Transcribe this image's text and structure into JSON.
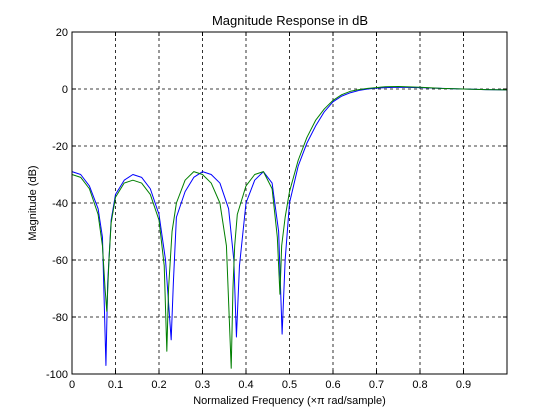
{
  "chart_data": {
    "type": "line",
    "title": "Magnitude Response in dB",
    "xlabel": "Normalized Frequency  (×π rad/sample)",
    "ylabel": "Magnitude (dB)",
    "xlim": [
      0,
      1
    ],
    "ylim": [
      -100,
      20
    ],
    "xticks": [
      0,
      0.1,
      0.2,
      0.3,
      0.4,
      0.5,
      0.6,
      0.7,
      0.8,
      0.9
    ],
    "xtick_labels": [
      "0",
      "0.1",
      "0.2",
      "0.3",
      "0.4",
      "0.5",
      "0.6",
      "0.7",
      "0.8",
      "0.9"
    ],
    "yticks": [
      20,
      0,
      -20,
      -40,
      -60,
      -80,
      -100
    ],
    "ytick_labels": [
      "20",
      "0",
      "-20",
      "-40",
      "-60",
      "-80",
      "-100"
    ],
    "grid": true,
    "grid_style": "dashed",
    "series": [
      {
        "color": "#0000ff",
        "x": [
          0,
          0.02,
          0.04,
          0.06,
          0.07,
          0.078,
          0.082,
          0.09,
          0.1,
          0.12,
          0.14,
          0.16,
          0.18,
          0.2,
          0.215,
          0.228,
          0.233,
          0.24,
          0.26,
          0.28,
          0.3,
          0.32,
          0.34,
          0.36,
          0.372,
          0.378,
          0.385,
          0.4,
          0.42,
          0.44,
          0.46,
          0.475,
          0.483,
          0.49,
          0.5,
          0.52,
          0.54,
          0.56,
          0.58,
          0.6,
          0.62,
          0.64,
          0.66,
          0.68,
          0.7,
          0.72,
          0.75,
          0.8,
          0.85,
          0.9,
          0.95,
          1.0
        ],
        "y": [
          -29,
          -30,
          -34,
          -42,
          -52,
          -97,
          -68,
          -46,
          -37,
          -32,
          -30,
          -31,
          -35,
          -44,
          -60,
          -88,
          -68,
          -45,
          -36,
          -31,
          -29,
          -30,
          -33,
          -42,
          -60,
          -87,
          -62,
          -40,
          -32,
          -29,
          -33,
          -50,
          -86,
          -60,
          -40,
          -27,
          -19,
          -13,
          -8,
          -4.5,
          -2.5,
          -1.3,
          -0.5,
          0,
          0.3,
          0.5,
          0.6,
          0.5,
          0.2,
          0,
          -0.2,
          -0.3
        ]
      },
      {
        "color": "#007f00",
        "x": [
          0,
          0.02,
          0.04,
          0.06,
          0.07,
          0.076,
          0.08,
          0.085,
          0.09,
          0.1,
          0.12,
          0.14,
          0.16,
          0.18,
          0.2,
          0.212,
          0.218,
          0.222,
          0.23,
          0.24,
          0.26,
          0.28,
          0.3,
          0.32,
          0.34,
          0.355,
          0.366,
          0.37,
          0.374,
          0.38,
          0.4,
          0.42,
          0.44,
          0.46,
          0.472,
          0.478,
          0.482,
          0.49,
          0.5,
          0.52,
          0.54,
          0.56,
          0.58,
          0.6,
          0.62,
          0.64,
          0.66,
          0.68,
          0.7,
          0.72,
          0.75,
          0.8,
          0.85,
          0.9,
          0.95,
          1.0
        ],
        "y": [
          -30,
          -31,
          -35,
          -44,
          -55,
          -70,
          -78,
          -60,
          -47,
          -38,
          -33,
          -32,
          -33,
          -37,
          -46,
          -62,
          -92,
          -70,
          -50,
          -40,
          -32,
          -29,
          -30,
          -33,
          -40,
          -55,
          -98,
          -70,
          -55,
          -44,
          -34,
          -30,
          -29,
          -35,
          -52,
          -72,
          -55,
          -45,
          -36,
          -25,
          -17,
          -11,
          -7,
          -4,
          -2,
          -0.8,
          -0.2,
          0.2,
          0.5,
          0.8,
          0.9,
          0.6,
          0.2,
          0,
          -0.2,
          -0.3
        ]
      }
    ]
  }
}
